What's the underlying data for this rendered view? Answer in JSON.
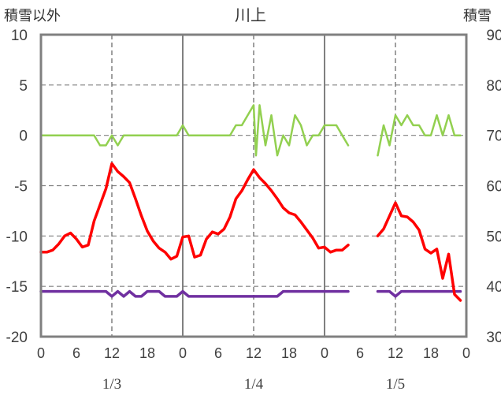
{
  "chart_data": {
    "type": "line",
    "title": "川上",
    "ylabel_left": "積雪以外",
    "ylabel_right": "積雪",
    "ylim_left": [
      -20,
      10
    ],
    "yticks_left": [
      10,
      5,
      0,
      -5,
      -10,
      -15,
      -20
    ],
    "ylim_right": [
      30,
      90
    ],
    "yticks_right": [
      90,
      80,
      70,
      60,
      50,
      40,
      30
    ],
    "xlim_hours": [
      0,
      72
    ],
    "xtick_hours": [
      0,
      6,
      12,
      18,
      24,
      30,
      36,
      42,
      48,
      54,
      60,
      66,
      72
    ],
    "xtick_labels": [
      "0",
      "6",
      "12",
      "18",
      "0",
      "6",
      "12",
      "18",
      "0",
      "6",
      "12",
      "18",
      "0"
    ],
    "day_separator_hours": [
      24,
      48
    ],
    "dashed_midday_hours": [
      12,
      36,
      60
    ],
    "date_labels": [
      {
        "hour": 12,
        "text": "1/3"
      },
      {
        "hour": 36,
        "text": "1/4"
      },
      {
        "hour": 60,
        "text": "1/5"
      }
    ],
    "grid": "horizontal dashed",
    "series": [
      {
        "name": "snow-depth",
        "axis": "right",
        "color": "#7030a0",
        "segments": [
          [
            [
              0,
              39
            ],
            [
              1,
              39
            ],
            [
              2,
              39
            ],
            [
              3,
              39
            ],
            [
              4,
              39
            ],
            [
              5,
              39
            ],
            [
              6,
              39
            ],
            [
              7,
              39
            ],
            [
              8,
              39
            ],
            [
              9,
              39
            ],
            [
              10,
              39
            ],
            [
              11,
              39
            ],
            [
              12,
              38
            ],
            [
              13,
              39
            ],
            [
              14,
              38
            ],
            [
              15,
              39
            ],
            [
              16,
              38
            ],
            [
              17,
              38
            ],
            [
              18,
              39
            ],
            [
              19,
              39
            ],
            [
              20,
              39
            ],
            [
              21,
              38
            ],
            [
              22,
              38
            ],
            [
              23,
              38
            ],
            [
              24,
              39
            ],
            [
              25,
              38
            ],
            [
              26,
              38
            ],
            [
              27,
              38
            ],
            [
              28,
              38
            ],
            [
              29,
              38
            ],
            [
              30,
              38
            ],
            [
              31,
              38
            ],
            [
              32,
              38
            ],
            [
              33,
              38
            ],
            [
              34,
              38
            ],
            [
              35,
              38
            ],
            [
              36,
              38
            ],
            [
              37,
              38
            ],
            [
              38,
              38
            ],
            [
              39,
              38
            ],
            [
              40,
              38
            ],
            [
              41,
              39
            ],
            [
              42,
              39
            ],
            [
              43,
              39
            ],
            [
              44,
              39
            ],
            [
              45,
              39
            ],
            [
              46,
              39
            ],
            [
              47,
              39
            ],
            [
              48,
              39
            ],
            [
              49,
              39
            ],
            [
              50,
              39
            ],
            [
              51,
              39
            ],
            [
              52,
              39
            ]
          ],
          [
            [
              57,
              39
            ],
            [
              58,
              39
            ],
            [
              59,
              39
            ],
            [
              60,
              38
            ],
            [
              61,
              39
            ],
            [
              62,
              39
            ],
            [
              63,
              39
            ],
            [
              64,
              39
            ],
            [
              65,
              39
            ],
            [
              66,
              39
            ],
            [
              67,
              39
            ],
            [
              68,
              39
            ],
            [
              69,
              39
            ],
            [
              70,
              39
            ],
            [
              71,
              39
            ]
          ]
        ]
      },
      {
        "name": "temperature",
        "axis": "left",
        "color": "#ff0000",
        "segments": [
          [
            [
              0,
              -11.6
            ],
            [
              1,
              -11.6
            ],
            [
              2,
              -11.4
            ],
            [
              3,
              -10.8
            ],
            [
              4,
              -10
            ],
            [
              5,
              -9.7
            ],
            [
              6,
              -10.3
            ],
            [
              7,
              -11.1
            ],
            [
              8,
              -10.9
            ],
            [
              9,
              -8.5
            ],
            [
              10,
              -6.9
            ],
            [
              11,
              -5.3
            ],
            [
              12,
              -2.8
            ],
            [
              13,
              -3.6
            ],
            [
              14,
              -4.1
            ],
            [
              15,
              -4.7
            ],
            [
              16,
              -6.3
            ],
            [
              17,
              -8
            ],
            [
              18,
              -9.5
            ],
            [
              19,
              -10.5
            ],
            [
              20,
              -11.2
            ],
            [
              21,
              -11.6
            ],
            [
              22,
              -12.3
            ],
            [
              23,
              -12
            ],
            [
              24,
              -10.1
            ],
            [
              25,
              -10
            ],
            [
              26,
              -12.1
            ],
            [
              27,
              -11.9
            ],
            [
              28,
              -10.3
            ],
            [
              29,
              -9.6
            ],
            [
              30,
              -9.8
            ],
            [
              31,
              -9.3
            ],
            [
              32,
              -8.1
            ],
            [
              33,
              -6.3
            ],
            [
              34,
              -5.5
            ],
            [
              35,
              -4.4
            ],
            [
              36,
              -3.4
            ],
            [
              37,
              -4.2
            ],
            [
              38,
              -4.8
            ],
            [
              39,
              -5.5
            ],
            [
              40,
              -6.3
            ],
            [
              41,
              -7.2
            ],
            [
              42,
              -7.7
            ],
            [
              43,
              -7.9
            ],
            [
              44,
              -8.6
            ],
            [
              45,
              -9.4
            ],
            [
              46,
              -10.2
            ],
            [
              47,
              -11.2
            ],
            [
              48,
              -11.1
            ],
            [
              49,
              -11.6
            ],
            [
              50,
              -11.4
            ],
            [
              51,
              -11.4
            ],
            [
              52,
              -10.9
            ]
          ],
          [
            [
              57,
              -10
            ],
            [
              58,
              -9.3
            ],
            [
              59,
              -8
            ],
            [
              60,
              -6.7
            ],
            [
              61,
              -8
            ],
            [
              62,
              -8.1
            ],
            [
              63,
              -8.6
            ],
            [
              64,
              -9.4
            ],
            [
              65,
              -11.3
            ],
            [
              66,
              -11.7
            ],
            [
              67,
              -11.3
            ],
            [
              68,
              -14.2
            ],
            [
              69,
              -11.8
            ],
            [
              70,
              -15.8
            ],
            [
              71,
              -16.4
            ]
          ]
        ]
      },
      {
        "name": "precipitation",
        "axis": "left",
        "color": "#92d050",
        "segments": [
          [
            [
              0,
              0
            ],
            [
              1,
              0
            ],
            [
              2,
              0
            ],
            [
              3,
              0
            ],
            [
              4,
              0
            ],
            [
              5,
              0
            ],
            [
              6,
              0
            ],
            [
              7,
              0
            ],
            [
              8,
              0
            ],
            [
              9,
              0
            ],
            [
              10,
              -1
            ],
            [
              11,
              -1
            ],
            [
              12,
              0
            ],
            [
              13,
              -1
            ],
            [
              14,
              0
            ],
            [
              15,
              0
            ],
            [
              16,
              0
            ],
            [
              17,
              0
            ],
            [
              18,
              0
            ],
            [
              19,
              0
            ],
            [
              20,
              0
            ],
            [
              21,
              0
            ],
            [
              22,
              0
            ],
            [
              23,
              0
            ],
            [
              24,
              1
            ],
            [
              25,
              0
            ],
            [
              26,
              0
            ],
            [
              27,
              0
            ],
            [
              28,
              0
            ],
            [
              29,
              0
            ],
            [
              30,
              0
            ],
            [
              31,
              0
            ],
            [
              32,
              0
            ],
            [
              33,
              1
            ],
            [
              34,
              1
            ],
            [
              35,
              2
            ],
            [
              36,
              3
            ],
            [
              36.4,
              -2
            ],
            [
              37,
              3
            ],
            [
              38,
              -1
            ],
            [
              39,
              2
            ],
            [
              40,
              -2
            ],
            [
              41,
              0
            ],
            [
              42,
              -1
            ],
            [
              43,
              2
            ],
            [
              44,
              1
            ],
            [
              45,
              -1
            ],
            [
              46,
              0
            ],
            [
              47,
              0
            ],
            [
              48,
              1
            ],
            [
              49,
              1
            ],
            [
              50,
              1
            ],
            [
              51,
              0
            ],
            [
              52,
              -1
            ]
          ],
          [
            [
              57,
              -2
            ],
            [
              58,
              1
            ],
            [
              59,
              -1
            ],
            [
              60,
              2
            ],
            [
              61,
              1
            ],
            [
              62,
              2
            ],
            [
              63,
              1
            ],
            [
              64,
              1
            ],
            [
              65,
              0
            ],
            [
              66,
              0
            ],
            [
              67,
              2
            ],
            [
              68,
              0
            ],
            [
              69,
              2
            ],
            [
              70,
              0
            ],
            [
              71,
              0
            ]
          ]
        ]
      }
    ]
  }
}
